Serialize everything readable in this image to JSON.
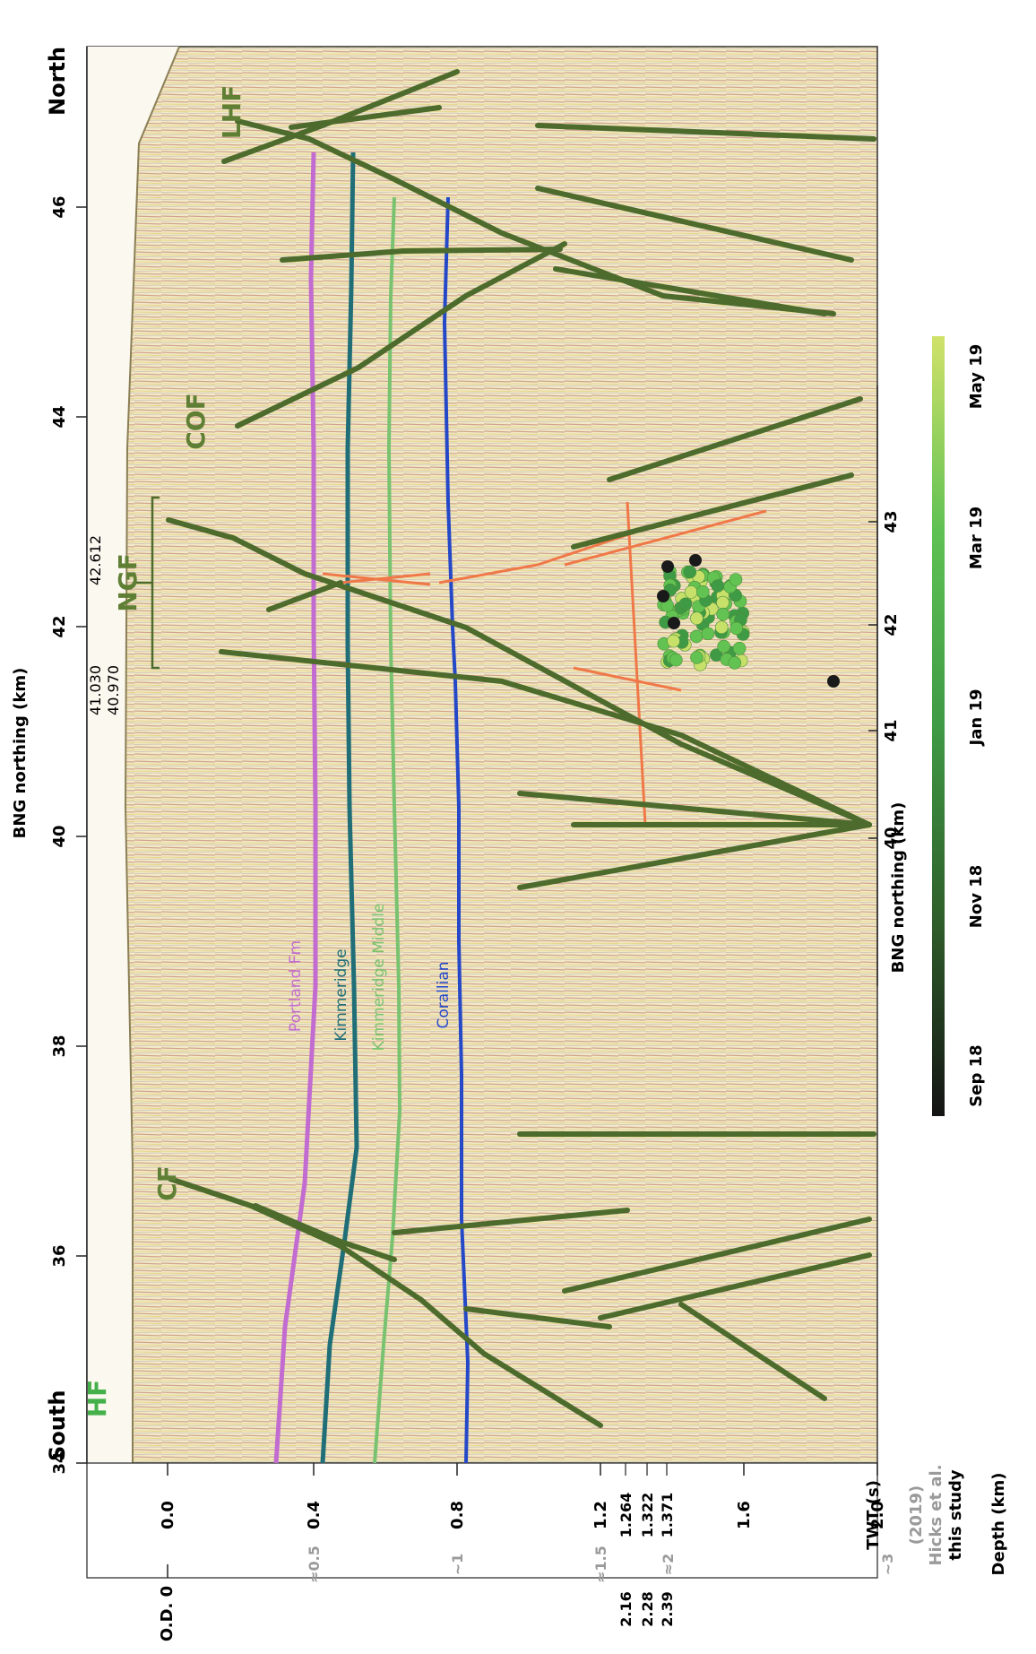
{
  "orientation_labels": {
    "north": "North",
    "south": "South"
  },
  "top_axis": {
    "label": "BNG northing (km)",
    "ticks": [
      "34",
      "36",
      "38",
      "40",
      "42",
      "44",
      "46"
    ],
    "extra_ticks": [
      "42.612",
      "41.030",
      "40.970"
    ]
  },
  "inner_axis": {
    "label": "BNG northing (km)",
    "ticks": [
      "40",
      "41",
      "42",
      "43"
    ]
  },
  "twt_axis": {
    "label": "TWT (s)",
    "ticks": [
      "0.0",
      "0.4",
      "0.8",
      "1.2",
      "1.6",
      "2.0"
    ],
    "extra_ticks": [
      "1.264",
      "1.322",
      "1.371"
    ]
  },
  "depth_axis": {
    "label": "Depth (km)",
    "label_this_study": "this study",
    "label_hicks": "Hicks et al.",
    "label_hicks_year": "(2019)",
    "od_label": "O.D. 0",
    "this_study_ticks": [
      "2.16",
      "2.28",
      "2.39"
    ],
    "hicks_ticks": [
      "≈0.5",
      "~1",
      "≈1.5",
      "≈2",
      "~3"
    ]
  },
  "fault_labels": {
    "lhf": "LHF",
    "cof": "COF",
    "ngf": "NGF",
    "cf": "CF",
    "hf": "HF"
  },
  "horizon_labels": {
    "portland": "Portland Fm",
    "kimmeridge": "Kimmeridge",
    "kimmeridge_middle": "Kimmeridge Middle",
    "corallian": "Corallian"
  },
  "colorbar": {
    "labels": [
      "Sep 18",
      "Nov 18",
      "Jan 19",
      "Mar 19",
      "May 19"
    ],
    "colors": [
      "#1a1a1a",
      "#2f5e2a",
      "#3f9a45",
      "#62c352",
      "#c7e06a"
    ]
  },
  "colors": {
    "fault": "#4c6b2c",
    "portland": "#c26bd0",
    "kimmeridge": "#1f6e78",
    "kimmeridge_middle": "#78c270",
    "corallian": "#2448c8",
    "highlight_fault": "#f07848"
  }
}
